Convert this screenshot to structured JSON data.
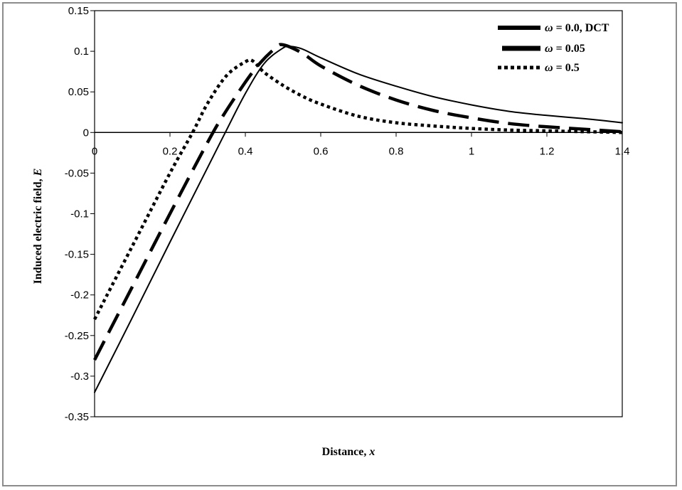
{
  "chart_data": {
    "type": "line",
    "title": "",
    "xlabel": "Distance, x",
    "ylabel": "Induced electric field, E",
    "xlabel_parts": [
      "Distance, ",
      "x"
    ],
    "ylabel_parts": [
      "Induced electric field, ",
      "E"
    ],
    "xlim": [
      0,
      1.4
    ],
    "ylim": [
      -0.35,
      0.15
    ],
    "xticks": [
      0,
      0.2,
      0.4,
      0.6,
      0.8,
      1,
      1.2,
      1.4
    ],
    "xtick_labels": [
      "0",
      "0.2",
      "0.4",
      "0.6",
      "0.8",
      "1",
      "1.2",
      "1.4"
    ],
    "yticks": [
      0.15,
      0.1,
      0.05,
      0,
      -0.05,
      -0.1,
      -0.15,
      -0.2,
      -0.25,
      -0.3,
      -0.35
    ],
    "ytick_labels": [
      "0.15",
      "0.1",
      "0.05",
      "0",
      "-0.05",
      "-0.1",
      "-0.15",
      "-0.2",
      "-0.25",
      "-0.3",
      "-0.35"
    ],
    "grid": false,
    "legend_position": "top-right",
    "series": [
      {
        "name": "ω = 0.0,  DCT",
        "label_parts": [
          "ω",
          " = 0.0,  DCT"
        ],
        "style": "solid",
        "x": [
          0,
          0.1,
          0.2,
          0.3,
          0.35,
          0.4,
          0.45,
          0.5,
          0.52,
          0.55,
          0.6,
          0.7,
          0.8,
          0.9,
          1.0,
          1.1,
          1.2,
          1.3,
          1.4
        ],
        "y": [
          -0.32,
          -0.228,
          -0.135,
          -0.043,
          0.003,
          0.048,
          0.085,
          0.104,
          0.106,
          0.103,
          0.092,
          0.072,
          0.057,
          0.044,
          0.034,
          0.026,
          0.021,
          0.017,
          0.012
        ]
      },
      {
        "name": "ω = 0.05",
        "label_parts": [
          "ω",
          " = 0.05"
        ],
        "style": "dashed",
        "x": [
          0,
          0.1,
          0.2,
          0.3,
          0.34,
          0.4,
          0.44,
          0.48,
          0.5,
          0.55,
          0.6,
          0.7,
          0.8,
          0.9,
          1.0,
          1.1,
          1.2,
          1.3,
          1.4
        ],
        "y": [
          -0.28,
          -0.19,
          -0.1,
          -0.012,
          0.02,
          0.062,
          0.086,
          0.104,
          0.108,
          0.098,
          0.082,
          0.058,
          0.04,
          0.027,
          0.018,
          0.011,
          0.007,
          0.004,
          0.001
        ]
      },
      {
        "name": "ω = 0.5",
        "label_parts": [
          "ω",
          " = 0.5"
        ],
        "style": "dotted",
        "x": [
          0,
          0.1,
          0.2,
          0.26,
          0.3,
          0.35,
          0.4,
          0.42,
          0.45,
          0.5,
          0.55,
          0.6,
          0.7,
          0.8,
          0.9,
          1.0,
          1.1,
          1.2,
          1.3,
          1.4
        ],
        "y": [
          -0.23,
          -0.14,
          -0.05,
          0.0,
          0.036,
          0.07,
          0.087,
          0.088,
          0.074,
          0.058,
          0.045,
          0.035,
          0.02,
          0.012,
          0.008,
          0.005,
          0.003,
          0.002,
          0.001,
          0.0
        ]
      }
    ]
  }
}
